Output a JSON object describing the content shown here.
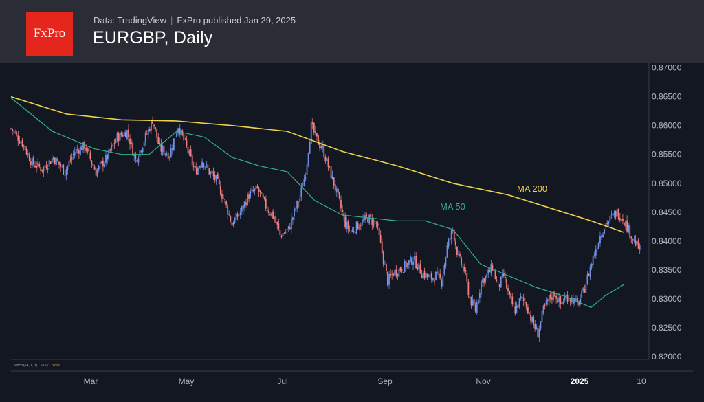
{
  "header": {
    "logo_text": "FxPro",
    "source": "Data: TradingView",
    "published": "FxPro published Jan 29, 2025",
    "title": "EURGBP, Daily"
  },
  "colors": {
    "background": "#131722",
    "header_bg": "#2a2d36",
    "logo_bg": "#e4261d",
    "up_candle": "#6f8fe6",
    "down_candle": "#f07f7f",
    "ma200": "#f0d24a",
    "ma50": "#2fb388",
    "axis_text": "#b2b5be"
  },
  "stoch_label": {
    "name": "Stoch (14, 1, 3)",
    "k": "14.67",
    "d": "32.66"
  },
  "chart_data": {
    "type": "candlestick",
    "title": "EURGBP, Daily",
    "x_ticks": [
      "Mar",
      "May",
      "Jul",
      "Sep",
      "Nov",
      "2025",
      "10"
    ],
    "y_ticks": [
      "0.87000",
      "0.86500",
      "0.86000",
      "0.85500",
      "0.85000",
      "0.84500",
      "0.84000",
      "0.83500",
      "0.83000",
      "0.82500",
      "0.82000"
    ],
    "ylim": [
      0.8195,
      0.8708
    ],
    "annotations": [
      "MA 200",
      "MA 50"
    ],
    "close_path": [
      [
        0,
        0.8595
      ],
      [
        8,
        0.857
      ],
      [
        15,
        0.8535
      ],
      [
        22,
        0.8525
      ],
      [
        30,
        0.8545
      ],
      [
        38,
        0.852
      ],
      [
        45,
        0.8555
      ],
      [
        52,
        0.8565
      ],
      [
        60,
        0.852
      ],
      [
        68,
        0.8545
      ],
      [
        75,
        0.858
      ],
      [
        82,
        0.859
      ],
      [
        88,
        0.854
      ],
      [
        95,
        0.858
      ],
      [
        100,
        0.861
      ],
      [
        105,
        0.856
      ],
      [
        112,
        0.855
      ],
      [
        118,
        0.86
      ],
      [
        125,
        0.8555
      ],
      [
        130,
        0.852
      ],
      [
        135,
        0.854
      ],
      [
        140,
        0.852
      ],
      [
        145,
        0.8505
      ],
      [
        150,
        0.8475
      ],
      [
        156,
        0.843
      ],
      [
        162,
        0.845
      ],
      [
        168,
        0.848
      ],
      [
        174,
        0.849
      ],
      [
        180,
        0.846
      ],
      [
        186,
        0.844
      ],
      [
        190,
        0.841
      ],
      [
        196,
        0.842
      ],
      [
        200,
        0.845
      ],
      [
        204,
        0.8475
      ],
      [
        208,
        0.852
      ],
      [
        212,
        0.86
      ],
      [
        216,
        0.8575
      ],
      [
        220,
        0.856
      ],
      [
        224,
        0.853
      ],
      [
        228,
        0.85
      ],
      [
        232,
        0.8465
      ],
      [
        236,
        0.843
      ],
      [
        240,
        0.8415
      ],
      [
        246,
        0.843
      ],
      [
        252,
        0.844
      ],
      [
        258,
        0.843
      ],
      [
        262,
        0.838
      ],
      [
        266,
        0.833
      ],
      [
        270,
        0.8345
      ],
      [
        274,
        0.835
      ],
      [
        280,
        0.836
      ],
      [
        284,
        0.837
      ],
      [
        290,
        0.8345
      ],
      [
        296,
        0.8335
      ],
      [
        300,
        0.834
      ],
      [
        304,
        0.833
      ],
      [
        308,
        0.839
      ],
      [
        312,
        0.842
      ],
      [
        316,
        0.837
      ],
      [
        320,
        0.835
      ],
      [
        324,
        0.83
      ],
      [
        328,
        0.828
      ],
      [
        332,
        0.833
      ],
      [
        336,
        0.834
      ],
      [
        340,
        0.8355
      ],
      [
        344,
        0.832
      ],
      [
        348,
        0.834
      ],
      [
        352,
        0.83
      ],
      [
        356,
        0.828
      ],
      [
        360,
        0.83
      ],
      [
        364,
        0.829
      ],
      [
        368,
        0.826
      ],
      [
        372,
        0.824
      ],
      [
        376,
        0.828
      ],
      [
        380,
        0.83
      ],
      [
        384,
        0.831
      ],
      [
        388,
        0.829
      ],
      [
        392,
        0.8305
      ],
      [
        396,
        0.83
      ],
      [
        400,
        0.829
      ],
      [
        404,
        0.831
      ],
      [
        408,
        0.8345
      ],
      [
        412,
        0.838
      ],
      [
        416,
        0.841
      ],
      [
        420,
        0.843
      ],
      [
        424,
        0.844
      ],
      [
        428,
        0.845
      ],
      [
        432,
        0.844
      ],
      [
        436,
        0.842
      ],
      [
        440,
        0.84
      ],
      [
        444,
        0.8385
      ]
    ],
    "ma200_path": [
      [
        0,
        0.865
      ],
      [
        40,
        0.862
      ],
      [
        80,
        0.861
      ],
      [
        120,
        0.8608
      ],
      [
        160,
        0.86
      ],
      [
        200,
        0.859
      ],
      [
        240,
        0.8555
      ],
      [
        280,
        0.853
      ],
      [
        320,
        0.85
      ],
      [
        360,
        0.848
      ],
      [
        400,
        0.845
      ],
      [
        420,
        0.8435
      ],
      [
        444,
        0.8415
      ]
    ],
    "ma50_path": [
      [
        0,
        0.8648
      ],
      [
        30,
        0.859
      ],
      [
        60,
        0.856
      ],
      [
        80,
        0.855
      ],
      [
        100,
        0.855
      ],
      [
        120,
        0.859
      ],
      [
        140,
        0.858
      ],
      [
        160,
        0.8545
      ],
      [
        180,
        0.853
      ],
      [
        200,
        0.852
      ],
      [
        220,
        0.847
      ],
      [
        240,
        0.8445
      ],
      [
        260,
        0.844
      ],
      [
        280,
        0.8435
      ],
      [
        300,
        0.8435
      ],
      [
        320,
        0.842
      ],
      [
        340,
        0.836
      ],
      [
        360,
        0.834
      ],
      [
        380,
        0.832
      ],
      [
        400,
        0.8305
      ],
      [
        420,
        0.8285
      ],
      [
        430,
        0.8305
      ],
      [
        444,
        0.8325
      ]
    ]
  }
}
